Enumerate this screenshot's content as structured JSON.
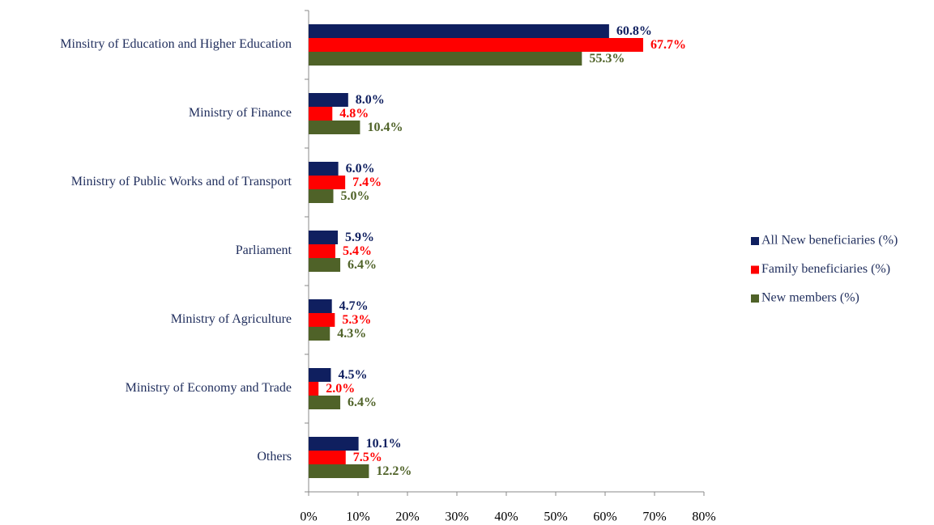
{
  "chart_data": {
    "type": "barh",
    "categories": [
      "Minsitry of Education and Higher Education",
      "Ministry of Finance",
      "Ministry of Public Works and of Transport",
      "Parliament",
      "Ministry of Agriculture",
      "Ministry of Economy and Trade",
      "Others"
    ],
    "series": [
      {
        "name": "All New beneficiaries (%)",
        "color": "#0f1f5f",
        "values": [
          60.8,
          8.0,
          6.0,
          5.9,
          4.7,
          4.5,
          10.1
        ],
        "value_labels": [
          "60.8%",
          "8.0%",
          "6.0%",
          "5.9%",
          "4.7%",
          "4.5%",
          "10.1%"
        ]
      },
      {
        "name": "Family beneficiaries (%)",
        "color": "#ff0000",
        "values": [
          67.7,
          4.8,
          7.4,
          5.4,
          5.3,
          2.0,
          7.5
        ],
        "value_labels": [
          "67.7%",
          "4.8%",
          "7.4%",
          "5.4%",
          "5.3%",
          "2.0%",
          "7.5%"
        ]
      },
      {
        "name": "New members (%)",
        "color": "#4f6228",
        "values": [
          55.3,
          10.4,
          5.0,
          6.4,
          4.3,
          6.4,
          12.2
        ],
        "value_labels": [
          "55.3%",
          "10.4%",
          "5.0%",
          "6.4%",
          "4.3%",
          "6.4%",
          "12.2%"
        ]
      }
    ],
    "xlim": [
      0,
      80
    ],
    "xticks": [
      {
        "value": 0,
        "label": "0%"
      },
      {
        "value": 10,
        "label": "10%"
      },
      {
        "value": 20,
        "label": "20%"
      },
      {
        "value": 30,
        "label": "30%"
      },
      {
        "value": 40,
        "label": "40%"
      },
      {
        "value": 50,
        "label": "50%"
      },
      {
        "value": 60,
        "label": "60%"
      },
      {
        "value": 70,
        "label": "70%"
      },
      {
        "value": 80,
        "label": "80%"
      }
    ],
    "legend": "right"
  }
}
